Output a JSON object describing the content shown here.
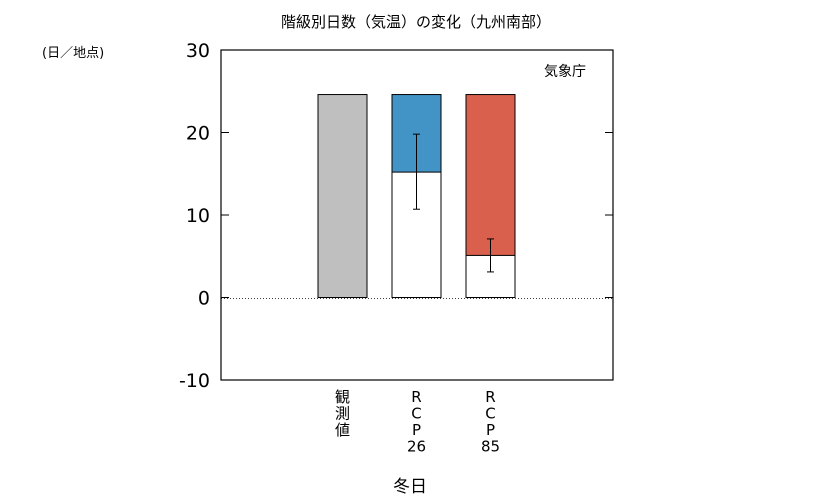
{
  "chart_data": {
    "type": "bar",
    "title": "階級別日数（気温）の変化（九州南部）",
    "ylabel": "(日／地点)",
    "xlabel": "冬日",
    "source": "気象庁",
    "ylim": [
      -10,
      30
    ],
    "yticks": [
      -10,
      0,
      10,
      20,
      30
    ],
    "grid": false,
    "legend": "none",
    "categories": [
      {
        "label": "観測値",
        "lines": [
          "観",
          "測",
          "値"
        ]
      },
      {
        "label": "RCP26",
        "lines": [
          "R",
          "C",
          "P",
          "26"
        ]
      },
      {
        "label": "RCP85",
        "lines": [
          "R",
          "C",
          "P",
          "85"
        ]
      }
    ],
    "present": [
      24.6,
      24.6,
      24.6
    ],
    "future": [
      null,
      15.2,
      5.1
    ],
    "error": [
      null,
      [
        10.7,
        19.8
      ],
      [
        3.1,
        7.1
      ]
    ],
    "colors": {
      "observed": "#bfbfbf",
      "rcp26": "#4394c6",
      "rcp85": "#d9604c",
      "future": "#ffffff"
    }
  }
}
